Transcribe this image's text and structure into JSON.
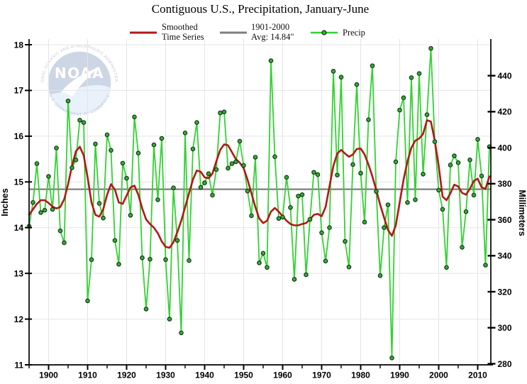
{
  "title": "Contiguous U.S., Precipitation, January-June",
  "legend": {
    "items": [
      {
        "line1": "Smoothed",
        "line2": "Time Series",
        "color": "#b21816",
        "swatch": "line"
      },
      {
        "line1": "1901-2000",
        "line2": "Avg: 14.84\"",
        "color": "#7f7f7f",
        "swatch": "line"
      },
      {
        "line1": "Precip",
        "line2": "",
        "color": "#32d232",
        "swatch": "line-marker"
      }
    ]
  },
  "logo": {
    "acronym": "NOAA",
    "ring_top": "NATIONAL OCEANIC AND ATMOSPHERIC ADMINISTRATION",
    "ring_bottom": "U.S. DEPARTMENT OF COMMERCE"
  },
  "chart_data": {
    "type": "line",
    "title": "Contiguous U.S., Precipitation, January-June",
    "years": {
      "start": 1895,
      "end": 2013,
      "step": 1
    },
    "xticks_labeled": [
      1900,
      1910,
      1920,
      1930,
      1940,
      1950,
      1960,
      1970,
      1980,
      1990,
      2000,
      2010
    ],
    "xticks_minor_step": 5,
    "grid": true,
    "legend_position": "top",
    "yaxis_left": {
      "label": "Inches",
      "min": 11,
      "max": 18,
      "ticks": [
        11,
        12,
        13,
        14,
        15,
        16,
        17,
        18
      ]
    },
    "yaxis_right": {
      "label": "Millimeters",
      "ticks": [
        280,
        300,
        320,
        340,
        360,
        380,
        400,
        420,
        440
      ],
      "mm_per_inch": 25.4
    },
    "series": [
      {
        "name": "Precip",
        "color": "#32d232",
        "marker": true,
        "marker_fill": "#2db42d",
        "marker_stroke": "#17351a",
        "values": [
          14.03,
          14.55,
          15.4,
          14.33,
          14.38,
          15.12,
          14.4,
          15.74,
          13.93,
          13.67,
          16.77,
          15.31,
          15.48,
          16.35,
          16.3,
          12.4,
          13.3,
          15.83,
          14.53,
          14.21,
          16.03,
          15.69,
          13.72,
          13.2,
          15.41,
          15.08,
          14.27,
          16.42,
          15.63,
          13.34,
          12.22,
          13.31,
          15.81,
          14.61,
          15.95,
          13.3,
          12.0,
          14.87,
          13.72,
          11.7,
          16.07,
          13.28,
          15.72,
          16.3,
          14.88,
          14.98,
          15.18,
          14.71,
          15.27,
          16.51,
          16.53,
          15.3,
          15.4,
          15.44,
          15.89,
          15.36,
          14.8,
          14.26,
          15.54,
          13.23,
          13.44,
          13.13,
          17.65,
          15.55,
          14.2,
          14.23,
          15.1,
          14.44,
          12.87,
          14.69,
          14.72,
          12.97,
          14.18,
          15.21,
          15.16,
          13.89,
          13.27,
          14.0,
          17.42,
          15.15,
          17.29,
          13.7,
          13.14,
          15.38,
          17.13,
          15.19,
          14.12,
          16.36,
          17.54,
          14.79,
          12.95,
          14.0,
          14.5,
          11.15,
          15.44,
          16.57,
          16.84,
          14.55,
          17.28,
          14.61,
          17.37,
          15.17,
          16.47,
          17.92,
          15.88,
          14.82,
          14.4,
          13.13,
          15.37,
          15.57,
          15.42,
          13.57,
          14.35,
          15.48,
          14.71,
          15.93,
          15.13,
          13.18,
          15.77
        ]
      },
      {
        "name": "Smoothed Time Series",
        "color": "#b21816",
        "values": [
          14.28,
          14.4,
          14.52,
          14.6,
          14.6,
          14.54,
          14.46,
          14.42,
          14.45,
          14.62,
          14.95,
          15.35,
          15.67,
          15.77,
          15.58,
          15.1,
          14.55,
          14.28,
          14.24,
          14.4,
          14.72,
          14.95,
          14.83,
          14.55,
          14.52,
          14.7,
          14.88,
          14.92,
          14.72,
          14.42,
          14.18,
          14.08,
          14.0,
          13.88,
          13.7,
          13.58,
          13.56,
          13.68,
          13.9,
          14.15,
          14.45,
          14.75,
          15.05,
          15.25,
          15.22,
          15.1,
          15.08,
          15.18,
          15.45,
          15.7,
          15.82,
          15.8,
          15.65,
          15.5,
          15.42,
          15.3,
          15.05,
          14.75,
          14.45,
          14.2,
          14.1,
          14.15,
          14.35,
          14.43,
          14.35,
          14.25,
          14.15,
          14.08,
          14.05,
          14.05,
          14.08,
          14.1,
          14.18,
          14.28,
          14.3,
          14.25,
          14.45,
          14.9,
          15.35,
          15.62,
          15.7,
          15.62,
          15.55,
          15.6,
          15.72,
          15.73,
          15.6,
          15.38,
          15.12,
          14.82,
          14.5,
          14.22,
          13.95,
          13.82,
          14.05,
          14.55,
          15.05,
          15.45,
          15.75,
          15.9,
          15.95,
          16.05,
          16.35,
          16.32,
          15.9,
          15.35,
          14.68,
          14.6,
          14.75,
          14.94,
          14.9,
          14.76,
          14.72,
          14.85,
          15.02,
          15.07,
          14.88,
          14.85,
          15.12
        ]
      },
      {
        "name": "1901-2000 Avg",
        "color": "#7f7f7f",
        "value": 14.84
      }
    ]
  }
}
